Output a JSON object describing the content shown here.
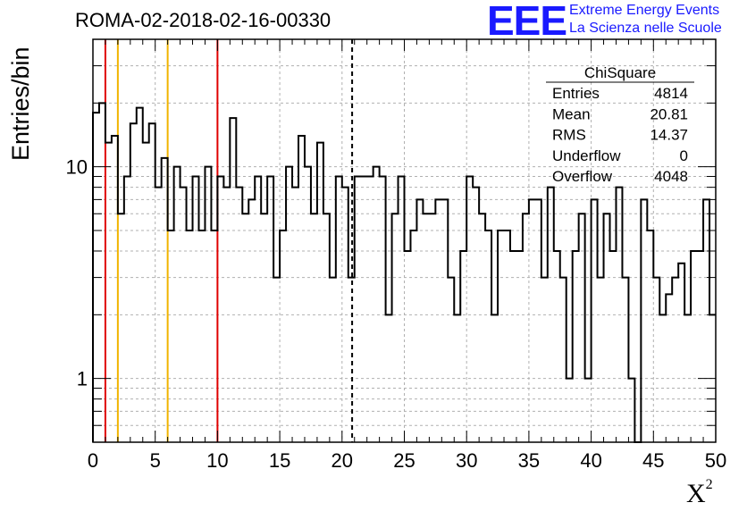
{
  "header": {
    "title": "ROMA-02-2018-02-16-00330",
    "logo_text": "EEE",
    "logo_line1": "Extreme Energy Events",
    "logo_line2": "La Scienza nelle Scuole"
  },
  "colors": {
    "histogram": "#000000",
    "red_line": "#e00000",
    "yellow_line": "#f0b400",
    "grid": "#b0b0b0",
    "logo": "#1a1aff"
  },
  "chart_data": {
    "type": "histogram",
    "title": "ROMA-02-2018-02-16-00330",
    "xlabel": "X",
    "xlabel_superscript": "2",
    "ylabel": "Entries/bin",
    "xlim": [
      0,
      50
    ],
    "ylim": [
      0.5,
      40
    ],
    "y_scale": "log",
    "grid": true,
    "x_ticks": [
      0,
      5,
      10,
      15,
      20,
      25,
      30,
      35,
      40,
      45,
      50
    ],
    "y_ticks": [
      1,
      10
    ],
    "bin_width": 0.5,
    "values": [
      18,
      20,
      13,
      14,
      6,
      9,
      16,
      19,
      13,
      16,
      8,
      11,
      5,
      10,
      8,
      5,
      9,
      5,
      10,
      5,
      9,
      8,
      17,
      8,
      6,
      7,
      9,
      6,
      9,
      3,
      5,
      10,
      8,
      14,
      10,
      6,
      13,
      6,
      3,
      9,
      8,
      3,
      9,
      9,
      9,
      10,
      9,
      2,
      6,
      9,
      4,
      5,
      7,
      6,
      6,
      7,
      7,
      3,
      2,
      4,
      9,
      8,
      6,
      5,
      2,
      5,
      5,
      4,
      4,
      6,
      7,
      7,
      3,
      8,
      4,
      3,
      1,
      4,
      6,
      1,
      7,
      3,
      6,
      4,
      8,
      3,
      1,
      0.5,
      7,
      5,
      3,
      2,
      2.5,
      3,
      3.5,
      2,
      4,
      4,
      7,
      2
    ],
    "vertical_lines": [
      {
        "x": 1,
        "color": "red"
      },
      {
        "x": 2,
        "color": "yellow"
      },
      {
        "x": 6,
        "color": "yellow"
      },
      {
        "x": 10,
        "color": "red"
      },
      {
        "x": 20.81,
        "color": "black",
        "style": "dashed"
      }
    ],
    "stats_box": {
      "name": "ChiSquare",
      "rows": [
        {
          "label": "Entries",
          "value": "4814"
        },
        {
          "label": "Mean",
          "value": "20.81"
        },
        {
          "label": "RMS",
          "value": "14.37"
        },
        {
          "label": "Underflow",
          "value": "0"
        },
        {
          "label": "Overflow",
          "value": "4048"
        }
      ]
    }
  }
}
